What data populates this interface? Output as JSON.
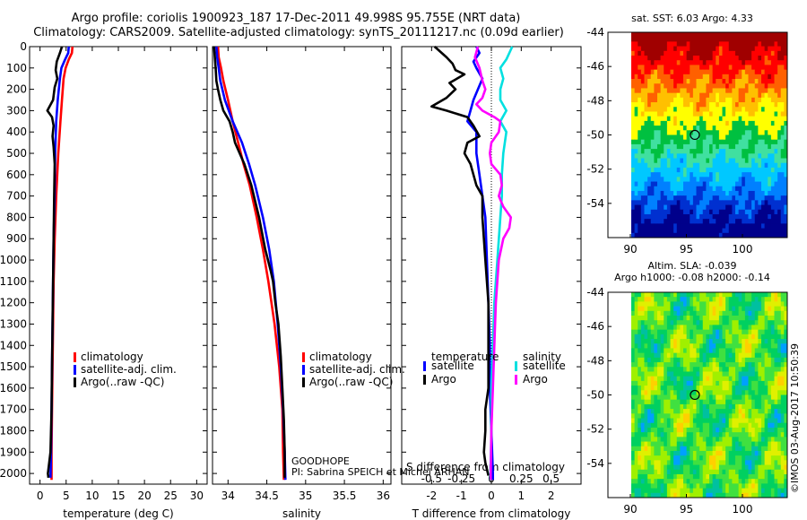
{
  "title_line1": "Argo profile: coriolis 1900923_187 17-Dec-2011 49.998S 95.755E (NRT data)",
  "title_line2": "Climatology: CARS2009. Satellite-adjusted climatology: synTS_20111217.nc (0.09d earlier)",
  "annotations": {
    "goodhope": "GOODHOPE",
    "pi": "PI: Sabrina SPEICH et Michel ARHAN",
    "credit": "©IMOS 03-Aug-2017 10:50:39"
  },
  "chart_data": [
    {
      "type": "line",
      "id": "temperature",
      "xlabel": "temperature (deg C)",
      "xlim": [
        -2,
        32
      ],
      "ylim": [
        2050,
        0
      ],
      "xticks": [
        0,
        5,
        10,
        15,
        20,
        25,
        30
      ],
      "yticks": [
        0,
        100,
        200,
        300,
        400,
        500,
        600,
        700,
        800,
        900,
        1000,
        1100,
        1200,
        1300,
        1400,
        1500,
        1600,
        1700,
        1800,
        1900,
        2000
      ],
      "legend": [
        "climatology",
        "satellite-adj. clim.",
        "Argo(..raw -QC)"
      ],
      "legend_position": "lower-center",
      "series": [
        {
          "name": "climatology",
          "color": "#ff0000",
          "points": [
            [
              6.2,
              0
            ],
            [
              6.1,
              30
            ],
            [
              5.5,
              60
            ],
            [
              4.9,
              100
            ],
            [
              4.5,
              150
            ],
            [
              4.2,
              250
            ],
            [
              3.9,
              350
            ],
            [
              3.5,
              500
            ],
            [
              3.1,
              700
            ],
            [
              2.8,
              900
            ],
            [
              2.6,
              1100
            ],
            [
              2.5,
              1300
            ],
            [
              2.4,
              1500
            ],
            [
              2.3,
              1700
            ],
            [
              2.2,
              1900
            ],
            [
              2.2,
              2030
            ]
          ]
        },
        {
          "name": "satellite-adj. clim.",
          "color": "#0000ff",
          "points": [
            [
              5.5,
              0
            ],
            [
              5.4,
              30
            ],
            [
              4.8,
              60
            ],
            [
              4.1,
              100
            ],
            [
              3.8,
              150
            ],
            [
              3.4,
              250
            ],
            [
              3.1,
              350
            ],
            [
              2.9,
              500
            ],
            [
              2.8,
              700
            ],
            [
              2.6,
              900
            ],
            [
              2.5,
              1100
            ],
            [
              2.4,
              1300
            ],
            [
              2.3,
              1500
            ],
            [
              2.2,
              1700
            ],
            [
              2.1,
              1900
            ],
            [
              2.0,
              2020
            ]
          ]
        },
        {
          "name": "Argo(..raw -QC)",
          "color": "#000000",
          "points": [
            [
              4.2,
              0
            ],
            [
              3.8,
              30
            ],
            [
              3.2,
              70
            ],
            [
              3.0,
              110
            ],
            [
              3.3,
              150
            ],
            [
              2.8,
              190
            ],
            [
              2.5,
              250
            ],
            [
              1.4,
              300
            ],
            [
              2.3,
              330
            ],
            [
              2.6,
              370
            ],
            [
              2.4,
              420
            ],
            [
              2.6,
              470
            ],
            [
              2.8,
              550
            ],
            [
              2.7,
              700
            ],
            [
              2.6,
              900
            ],
            [
              2.5,
              1100
            ],
            [
              2.4,
              1300
            ],
            [
              2.3,
              1500
            ],
            [
              2.2,
              1700
            ],
            [
              2.0,
              1900
            ],
            [
              1.5,
              2000
            ],
            [
              1.6,
              2020
            ]
          ]
        }
      ]
    },
    {
      "type": "line",
      "id": "salinity",
      "xlabel": "salinity",
      "xlim": [
        33.8,
        36.1
      ],
      "ylim": [
        2050,
        0
      ],
      "xticks": [
        34,
        34.5,
        35,
        35.5,
        36
      ],
      "legend": [
        "climatology",
        "satellite-adj. clim.",
        "Argo(..raw -QC)"
      ],
      "legend_position": "lower-center",
      "series": [
        {
          "name": "climatology",
          "color": "#ff0000",
          "points": [
            [
              33.87,
              0
            ],
            [
              33.88,
              50
            ],
            [
              33.91,
              100
            ],
            [
              33.94,
              160
            ],
            [
              34.0,
              250
            ],
            [
              34.06,
              350
            ],
            [
              34.13,
              450
            ],
            [
              34.2,
              550
            ],
            [
              34.28,
              650
            ],
            [
              34.37,
              800
            ],
            [
              34.45,
              950
            ],
            [
              34.52,
              1100
            ],
            [
              34.6,
              1300
            ],
            [
              34.66,
              1500
            ],
            [
              34.7,
              1700
            ],
            [
              34.71,
              1900
            ],
            [
              34.72,
              2030
            ]
          ]
        },
        {
          "name": "satellite-adj. clim.",
          "color": "#0000ff",
          "points": [
            [
              33.85,
              0
            ],
            [
              33.86,
              50
            ],
            [
              33.88,
              100
            ],
            [
              33.9,
              160
            ],
            [
              33.96,
              250
            ],
            [
              34.06,
              350
            ],
            [
              34.18,
              450
            ],
            [
              34.27,
              550
            ],
            [
              34.35,
              650
            ],
            [
              34.45,
              800
            ],
            [
              34.53,
              950
            ],
            [
              34.59,
              1100
            ],
            [
              34.64,
              1300
            ],
            [
              34.68,
              1500
            ],
            [
              34.71,
              1700
            ],
            [
              34.73,
              1900
            ],
            [
              34.74,
              2030
            ]
          ]
        },
        {
          "name": "Argo(..raw -QC)",
          "color": "#000000",
          "points": [
            [
              33.82,
              0
            ],
            [
              33.83,
              50
            ],
            [
              33.84,
              100
            ],
            [
              33.85,
              160
            ],
            [
              33.87,
              200
            ],
            [
              33.9,
              250
            ],
            [
              33.94,
              300
            ],
            [
              34.02,
              350
            ],
            [
              34.06,
              400
            ],
            [
              34.09,
              450
            ],
            [
              34.21,
              550
            ],
            [
              34.3,
              650
            ],
            [
              34.4,
              800
            ],
            [
              34.48,
              950
            ],
            [
              34.55,
              1050
            ],
            [
              34.58,
              1100
            ],
            [
              34.61,
              1200
            ],
            [
              34.65,
              1300
            ],
            [
              34.68,
              1450
            ],
            [
              34.7,
              1600
            ],
            [
              34.72,
              1750
            ],
            [
              34.73,
              1900
            ],
            [
              34.73,
              2020
            ]
          ]
        }
      ]
    },
    {
      "type": "line",
      "id": "difference",
      "xlabel": "T difference from climatology",
      "xlabel_top": "S difference from climatology",
      "xlim": [
        -3,
        3
      ],
      "ylim": [
        2050,
        0
      ],
      "xticks": [
        -2,
        -1,
        0,
        1,
        2
      ],
      "xticks_s": [
        -0.5,
        -0.25,
        0,
        0.25,
        0.5
      ],
      "legend_temperature_title": "temperature",
      "legend_salinity_title": "salinity",
      "legend_temperature": [
        "satellite",
        "Argo"
      ],
      "legend_salinity": [
        "satellite",
        "Argo"
      ],
      "legend_position": "lower-center",
      "series": [
        {
          "name": "temperature satellite",
          "color": "#0000ff",
          "points": [
            [
              -0.5,
              0
            ],
            [
              -0.4,
              30
            ],
            [
              -0.6,
              70
            ],
            [
              -0.5,
              100
            ],
            [
              -0.3,
              150
            ],
            [
              -0.6,
              250
            ],
            [
              -0.7,
              300
            ],
            [
              -0.8,
              350
            ],
            [
              -0.5,
              400
            ],
            [
              -0.5,
              500
            ],
            [
              -0.4,
              600
            ],
            [
              -0.3,
              700
            ],
            [
              -0.2,
              800
            ],
            [
              -0.15,
              1000
            ],
            [
              -0.1,
              1200
            ],
            [
              -0.05,
              1400
            ],
            [
              -0.05,
              1600
            ],
            [
              0.0,
              1800
            ],
            [
              0.05,
              2000
            ],
            [
              0.05,
              2030
            ]
          ]
        },
        {
          "name": "temperature Argo",
          "color": "#000000",
          "points": [
            [
              -1.9,
              0
            ],
            [
              -1.5,
              50
            ],
            [
              -1.3,
              80
            ],
            [
              -1.2,
              110
            ],
            [
              -0.9,
              130
            ],
            [
              -1.4,
              170
            ],
            [
              -1.2,
              200
            ],
            [
              -1.5,
              240
            ],
            [
              -2.0,
              280
            ],
            [
              -1.5,
              300
            ],
            [
              -0.8,
              330
            ],
            [
              -0.6,
              370
            ],
            [
              -0.4,
              420
            ],
            [
              -0.8,
              450
            ],
            [
              -0.9,
              500
            ],
            [
              -0.7,
              550
            ],
            [
              -0.6,
              600
            ],
            [
              -0.5,
              650
            ],
            [
              -0.3,
              700
            ],
            [
              -0.3,
              800
            ],
            [
              -0.2,
              1000
            ],
            [
              -0.1,
              1200
            ],
            [
              -0.1,
              1400
            ],
            [
              -0.1,
              1600
            ],
            [
              -0.2,
              1700
            ],
            [
              -0.2,
              1800
            ],
            [
              -0.25,
              1900
            ],
            [
              -0.2,
              1950
            ],
            [
              -0.1,
              2010
            ]
          ]
        },
        {
          "name": "salinity satellite",
          "color": "#00e0e0",
          "points": [
            [
              0.7,
              0
            ],
            [
              0.5,
              60
            ],
            [
              0.3,
              100
            ],
            [
              0.4,
              150
            ],
            [
              0.3,
              200
            ],
            [
              0.3,
              250
            ],
            [
              0.5,
              300
            ],
            [
              0.3,
              350
            ],
            [
              0.5,
              400
            ],
            [
              0.4,
              500
            ],
            [
              0.35,
              600
            ],
            [
              0.35,
              700
            ],
            [
              0.3,
              800
            ],
            [
              0.2,
              1000
            ],
            [
              0.1,
              1200
            ],
            [
              0.05,
              1400
            ],
            [
              0.0,
              1600
            ],
            [
              0.0,
              1800
            ],
            [
              -0.03,
              2000
            ],
            [
              -0.03,
              2030
            ]
          ]
        },
        {
          "name": "salinity Argo",
          "color": "#ff00ff",
          "points": [
            [
              -0.45,
              0
            ],
            [
              -0.55,
              50
            ],
            [
              -0.4,
              100
            ],
            [
              -0.3,
              160
            ],
            [
              -0.2,
              200
            ],
            [
              -0.3,
              240
            ],
            [
              -0.5,
              270
            ],
            [
              -0.3,
              300
            ],
            [
              0.1,
              330
            ],
            [
              0.3,
              350
            ],
            [
              0.25,
              400
            ],
            [
              0.0,
              450
            ],
            [
              -0.05,
              500
            ],
            [
              0.0,
              550
            ],
            [
              0.3,
              600
            ],
            [
              0.35,
              650
            ],
            [
              0.25,
              700
            ],
            [
              0.4,
              750
            ],
            [
              0.65,
              800
            ],
            [
              0.6,
              850
            ],
            [
              0.4,
              900
            ],
            [
              0.25,
              1000
            ],
            [
              0.15,
              1200
            ],
            [
              0.1,
              1400
            ],
            [
              0.05,
              1600
            ],
            [
              0.0,
              1800
            ],
            [
              -0.02,
              2000
            ],
            [
              -0.02,
              2030
            ]
          ]
        }
      ]
    },
    {
      "type": "heatmap",
      "id": "sst_map",
      "title": "sat. SST: 6.03  Argo: 4.33",
      "xlim": [
        88,
        104
      ],
      "ylim": [
        -56,
        -44
      ],
      "xticks": [
        90,
        95,
        100
      ],
      "yticks": [
        -44,
        -46,
        -48,
        -50,
        -52,
        -54
      ],
      "marker": {
        "lon": 95.755,
        "lat": -49.998
      },
      "colors": [
        "#00008b",
        "#0030d0",
        "#0080ff",
        "#00c8ff",
        "#40e0a0",
        "#00c040",
        "#ffff00",
        "#ffc000",
        "#ff6000",
        "#ff0000",
        "#a00000"
      ]
    },
    {
      "type": "heatmap",
      "id": "sla_map",
      "title": "Altim. SLA: -0.039",
      "subtitle": "Argo h1000: -0.08 h2000: -0.14",
      "xlim": [
        88,
        104
      ],
      "ylim": [
        -56,
        -44
      ],
      "xticks": [
        90,
        95,
        100
      ],
      "yticks": [
        -44,
        -46,
        -48,
        -50,
        -52,
        -54
      ],
      "marker": {
        "lon": 95.755,
        "lat": -49.998
      },
      "colors": [
        "#00a0ff",
        "#00c0a0",
        "#00d060",
        "#40e040",
        "#a0f000",
        "#e0f000",
        "#ffd000"
      ]
    }
  ]
}
